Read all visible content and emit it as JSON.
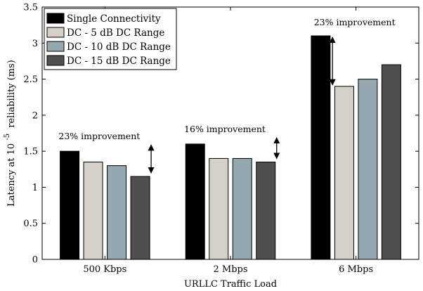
{
  "chart_data": {
    "type": "bar",
    "xlabel": "URLLC Traffic Load",
    "ylabel": {
      "prefix": "Latency at 10",
      "exponent": "-5",
      "suffix": "reliability (ms)"
    },
    "categories": [
      "500 Kbps",
      "2 Mbps",
      "6 Mbps"
    ],
    "ylim": [
      0,
      3.5
    ],
    "yticks": [
      "0",
      "0.5",
      "1",
      "1.5",
      "2",
      "2.5",
      "3",
      "3.5"
    ],
    "grid": false,
    "legend_position": "top-left",
    "series": [
      {
        "name": "Single Connectivity",
        "color": "#000000",
        "values": [
          1.5,
          1.6,
          3.1
        ]
      },
      {
        "name": "DC - 5 dB DC Range",
        "color": "#d5d1c8",
        "values": [
          1.35,
          1.4,
          2.4
        ]
      },
      {
        "name": "DC - 10 dB DC Range",
        "color": "#94a8b0",
        "values": [
          1.3,
          1.4,
          2.5
        ]
      },
      {
        "name": "DC - 15 dB DC Range",
        "color": "#4f4f4f",
        "values": [
          1.15,
          1.35,
          2.7
        ]
      }
    ],
    "annotations": [
      {
        "text": "23% improvement",
        "category": 0,
        "from": 1.15,
        "to": 1.5
      },
      {
        "text": "16% improvement",
        "category": 1,
        "from": 1.35,
        "to": 1.6
      },
      {
        "text": "23% improvement",
        "category": 2,
        "from": 2.4,
        "to": 3.1
      }
    ]
  }
}
